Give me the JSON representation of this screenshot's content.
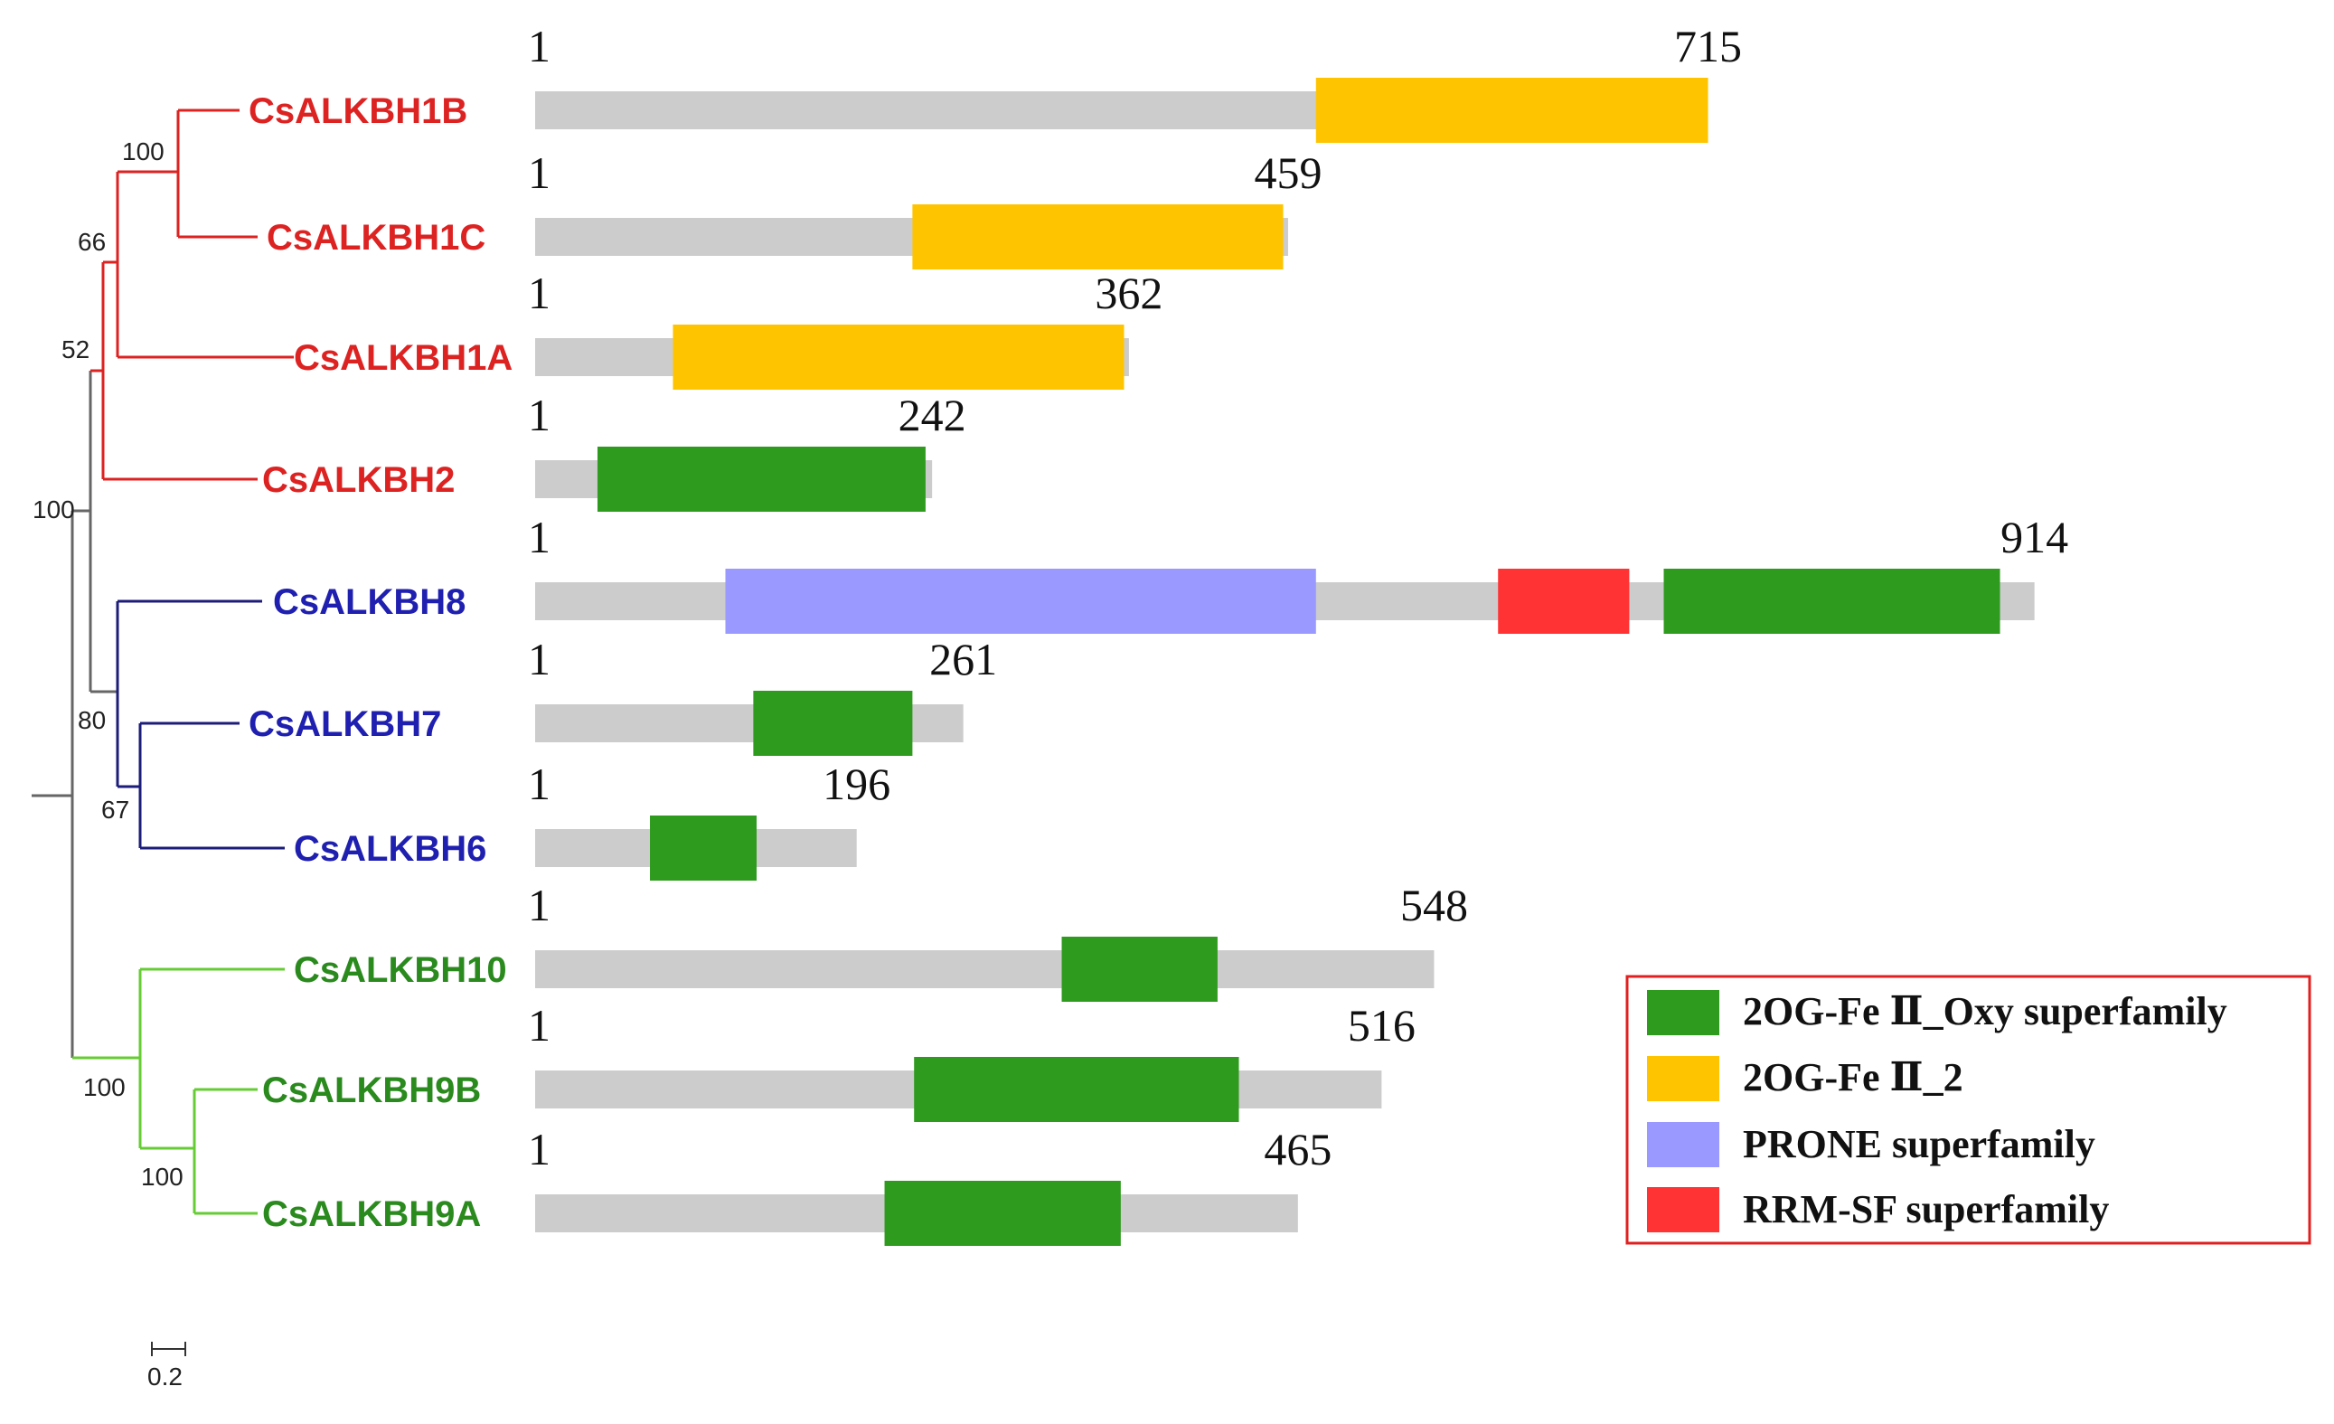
{
  "colors": {
    "red_clade": "#dd2222",
    "blue_clade": "#1f1fb0",
    "blue_branch": "#1c1c7a",
    "green_clade": "#2a8a1e",
    "green_branch": "#66cc33",
    "gray_branch": "#666666",
    "protein_bar": "#cccccc",
    "legend_border": "#e02020"
  },
  "domain_types": [
    {
      "key": "oxy",
      "label": "2OG-Fe Ⅱ_Oxy superfamily",
      "color": "#2e9a1e"
    },
    {
      "key": "fe2",
      "label": "2OG-Fe Ⅱ_2",
      "color": "#ffc400"
    },
    {
      "key": "prone",
      "label": "PRONE superfamily",
      "color": "#9999ff"
    },
    {
      "key": "rrm",
      "label": "RRM-SF superfamily",
      "color": "#ff3333"
    }
  ],
  "proteins": [
    {
      "name": "CsALKBH1B",
      "clade": "red",
      "start_label": "1",
      "length": 715,
      "length_label": "715",
      "domains": [
        {
          "type": "fe2",
          "start": 476,
          "end": 715
        }
      ]
    },
    {
      "name": "CsALKBH1C",
      "clade": "red",
      "start_label": "1",
      "length": 459,
      "length_label": "459",
      "domains": [
        {
          "type": "fe2",
          "start": 230,
          "end": 456
        }
      ]
    },
    {
      "name": "CsALKBH1A",
      "clade": "red",
      "start_label": "1",
      "length": 362,
      "length_label": "362",
      "domains": [
        {
          "type": "fe2",
          "start": 84,
          "end": 359
        }
      ]
    },
    {
      "name": "CsALKBH2",
      "clade": "red",
      "start_label": "1",
      "length": 242,
      "length_label": "242",
      "domains": [
        {
          "type": "oxy",
          "start": 38,
          "end": 238
        }
      ]
    },
    {
      "name": "CsALKBH8",
      "clade": "blue",
      "start_label": "1",
      "length": 914,
      "length_label": "914",
      "domains": [
        {
          "type": "prone",
          "start": 116,
          "end": 476
        },
        {
          "type": "rrm",
          "start": 587,
          "end": 667
        },
        {
          "type": "oxy",
          "start": 688,
          "end": 893
        }
      ]
    },
    {
      "name": "CsALKBH7",
      "clade": "blue",
      "start_label": "1",
      "length": 261,
      "length_label": "261",
      "domains": [
        {
          "type": "oxy",
          "start": 133,
          "end": 230
        }
      ]
    },
    {
      "name": "CsALKBH6",
      "clade": "blue",
      "start_label": "1",
      "length": 196,
      "length_label": "196",
      "domains": [
        {
          "type": "oxy",
          "start": 70,
          "end": 135
        }
      ]
    },
    {
      "name": "CsALKBH10",
      "clade": "green",
      "start_label": "1",
      "length": 548,
      "length_label": "548",
      "domains": [
        {
          "type": "oxy",
          "start": 321,
          "end": 416
        }
      ]
    },
    {
      "name": "CsALKBH9B",
      "clade": "green",
      "start_label": "1",
      "length": 516,
      "length_label": "516",
      "domains": [
        {
          "type": "oxy",
          "start": 231,
          "end": 429
        }
      ]
    },
    {
      "name": "CsALKBH9A",
      "clade": "green",
      "start_label": "1",
      "length": 465,
      "length_label": "465",
      "domains": [
        {
          "type": "oxy",
          "start": 213,
          "end": 357
        }
      ]
    }
  ],
  "bootstrap_values": {
    "b1": "100",
    "b2": "66",
    "b3": "52",
    "b4": "100",
    "b5": "80",
    "b6": "67",
    "b7": "100",
    "b8": "100"
  },
  "scale_bar": {
    "label": "0.2"
  }
}
